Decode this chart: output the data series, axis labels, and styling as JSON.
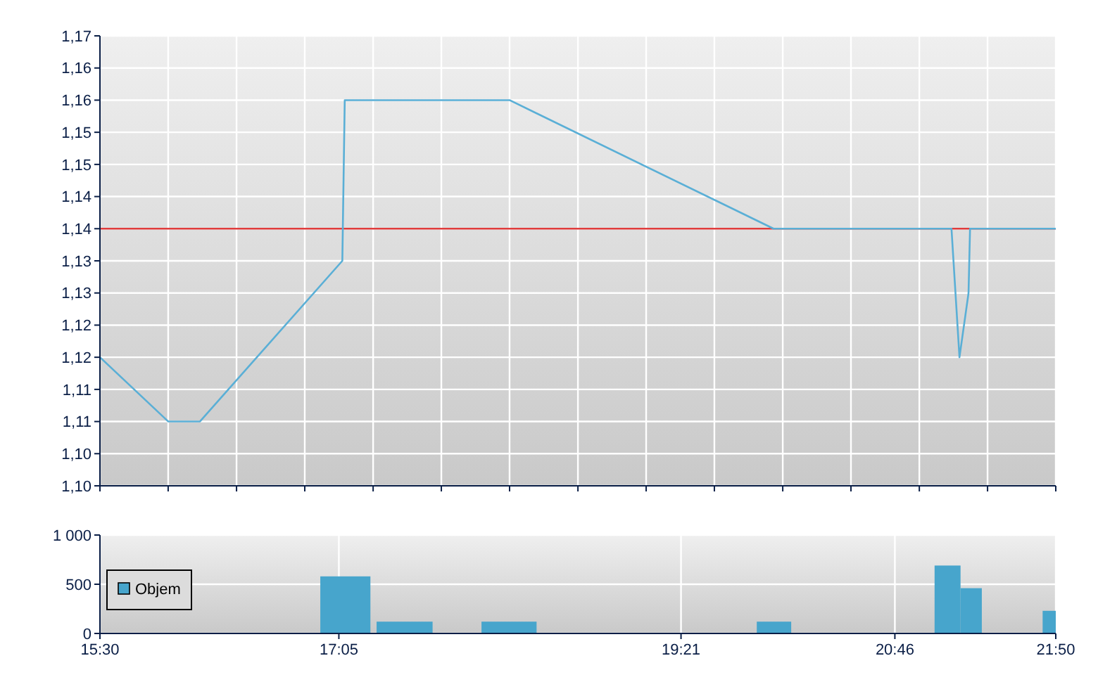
{
  "chart_data": [
    {
      "type": "line",
      "xlim": [
        15.5,
        21.833
      ],
      "xticks": [
        {
          "value": 15.5,
          "label": null
        },
        {
          "value": 15.952,
          "label": null
        },
        {
          "value": 16.405,
          "label": null
        },
        {
          "value": 16.857,
          "label": null
        },
        {
          "value": 17.31,
          "label": null
        },
        {
          "value": 17.762,
          "label": null
        },
        {
          "value": 18.214,
          "label": null
        },
        {
          "value": 18.667,
          "label": null
        },
        {
          "value": 19.119,
          "label": null
        },
        {
          "value": 19.571,
          "label": null
        },
        {
          "value": 20.024,
          "label": null
        },
        {
          "value": 20.476,
          "label": null
        },
        {
          "value": 20.929,
          "label": null
        },
        {
          "value": 21.381,
          "label": null
        },
        {
          "value": 21.833,
          "label": null
        }
      ],
      "ylim": [
        1.1,
        1.17
      ],
      "yticks": [
        {
          "value": 1.1,
          "label": "1,10"
        },
        {
          "value": 1.105,
          "label": "1,10"
        },
        {
          "value": 1.11,
          "label": "1,11"
        },
        {
          "value": 1.115,
          "label": "1,11"
        },
        {
          "value": 1.12,
          "label": "1,12"
        },
        {
          "value": 1.125,
          "label": "1,12"
        },
        {
          "value": 1.13,
          "label": "1,13"
        },
        {
          "value": 1.135,
          "label": "1,13"
        },
        {
          "value": 1.14,
          "label": "1,14"
        },
        {
          "value": 1.145,
          "label": "1,14"
        },
        {
          "value": 1.15,
          "label": "1,15"
        },
        {
          "value": 1.155,
          "label": "1,15"
        },
        {
          "value": 1.16,
          "label": "1,16"
        },
        {
          "value": 1.165,
          "label": "1,16"
        },
        {
          "value": 1.17,
          "label": "1,17"
        }
      ],
      "tick_labels": "y",
      "grid": true,
      "series": [
        {
          "color": "#5aafd6",
          "x": [
            15.5,
            15.953,
            16.162,
            17.106,
            17.122,
            18.214,
            19.963,
            21.142,
            21.195,
            21.255,
            21.265,
            21.833
          ],
          "values": [
            1.12,
            1.11,
            1.11,
            1.135,
            1.16,
            1.16,
            1.14,
            1.14,
            1.12,
            1.13,
            1.14,
            1.14
          ]
        }
      ],
      "ref_lines": [
        {
          "axis": "y",
          "value": 1.14,
          "color": "#e03c3c"
        }
      ]
    },
    {
      "type": "histogram",
      "xlim": [
        15.5,
        21.833
      ],
      "xticks": [
        {
          "value": 15.5,
          "label": "15:30"
        },
        {
          "value": 17.083,
          "label": "17:05"
        },
        {
          "value": 19.35,
          "label": "19:21"
        },
        {
          "value": 20.767,
          "label": "20:46"
        },
        {
          "value": 21.833,
          "label": "21:50"
        }
      ],
      "ylim": [
        0,
        1000
      ],
      "yticks": [
        0,
        500,
        {
          "value": 1000,
          "label": "1 000"
        }
      ],
      "grid": true,
      "legend": "left",
      "bins": [
        16.96,
        17.292,
        17.333,
        17.704,
        18.028,
        18.393,
        19.852,
        20.08,
        21.03,
        21.202,
        21.343,
        21.746,
        21.833
      ],
      "series": [
        {
          "name": "Objem",
          "color": "#47a5cc",
          "values": [
            580,
            0,
            120,
            0,
            120,
            0,
            120,
            0,
            690,
            460,
            0,
            230
          ]
        }
      ]
    }
  ]
}
